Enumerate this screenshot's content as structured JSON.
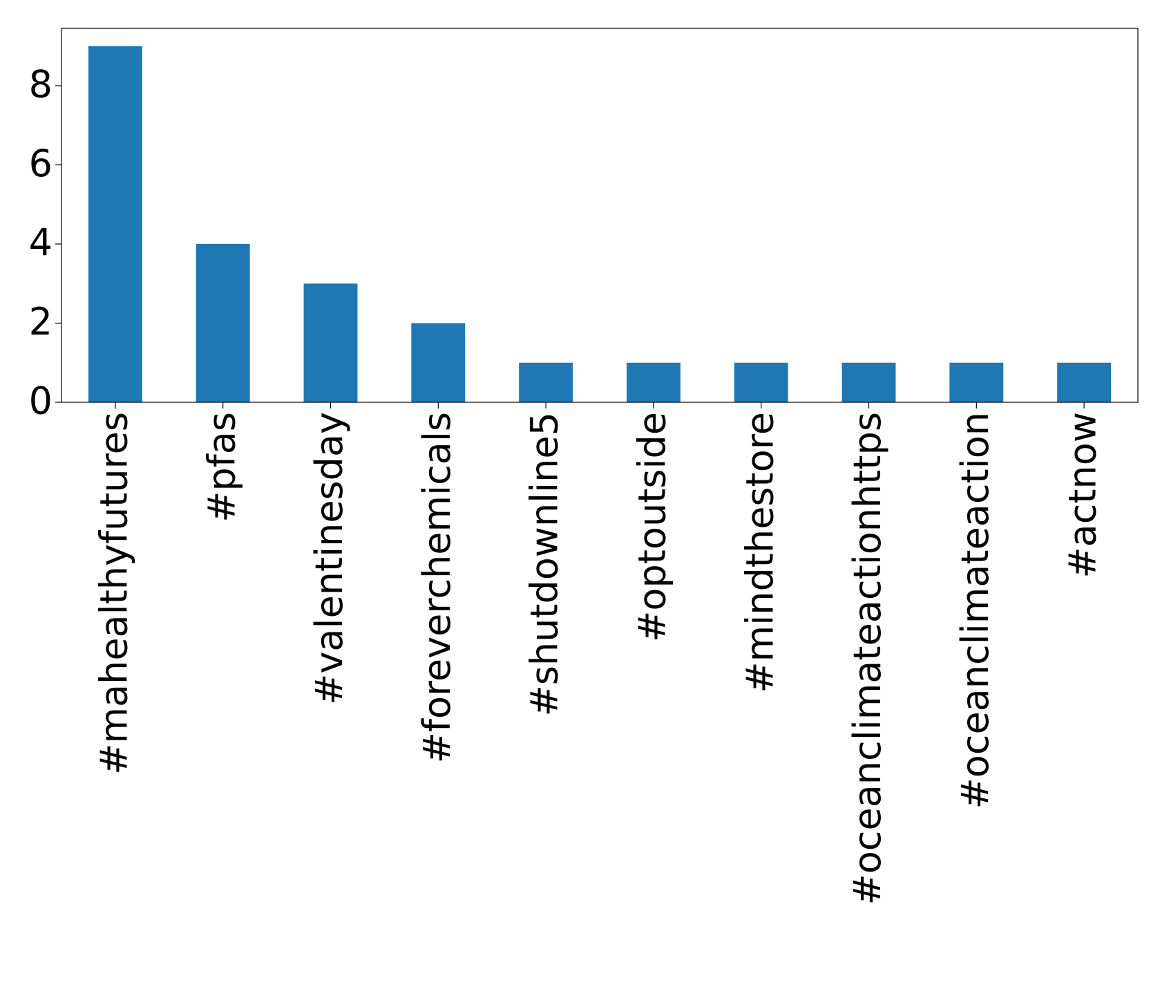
{
  "chart_data": {
    "type": "bar",
    "categories": [
      "#mahealthyfutures",
      "#pfas",
      "#valentinesday",
      "#foreverchemicals",
      "#shutdownline5",
      "#optoutside",
      "#mindthestore",
      "#oceanclimateactionhttps",
      "#oceanclimateaction",
      "#actnow"
    ],
    "values": [
      9,
      4,
      3,
      2,
      1,
      1,
      1,
      1,
      1,
      1
    ],
    "color": "#1f77b4",
    "ylim": [
      0,
      9.45
    ],
    "yticks": [
      0,
      2,
      4,
      6,
      8
    ],
    "grid": false
  }
}
